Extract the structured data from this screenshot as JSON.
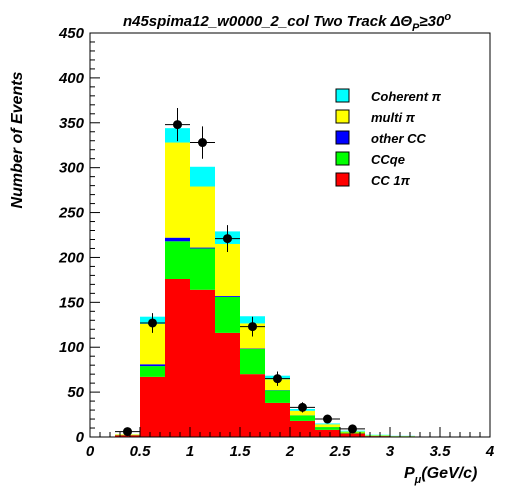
{
  "chart_data": {
    "type": "bar",
    "stacked": true,
    "title_main": "n45spima12_w0000_2_col Two Track ",
    "title_delta": "ΔΘ",
    "title_sub": "P",
    "title_cond": "≥30",
    "title_sup": "o",
    "ylabel": "Number of Events",
    "xlabel_main": "P",
    "xlabel_sub": "μ",
    "xlabel_unit": "(GeV/c)",
    "xlim": [
      0,
      4
    ],
    "ylim": [
      0,
      450
    ],
    "x_ticks": [
      0,
      0.5,
      1,
      1.5,
      2,
      2.5,
      3,
      3.5,
      4
    ],
    "x_tick_labels": [
      "0",
      "0.5",
      "1",
      "1.5",
      "2",
      "2.5",
      "3",
      "3.5",
      "4"
    ],
    "y_ticks": [
      0,
      50,
      100,
      150,
      200,
      250,
      300,
      350,
      400,
      450
    ],
    "y_tick_labels": [
      "0",
      "50",
      "100",
      "150",
      "200",
      "250",
      "300",
      "350",
      "400",
      "450"
    ],
    "bin_edges": [
      0.25,
      0.5,
      0.75,
      1.0,
      1.25,
      1.5,
      1.75,
      2.0,
      2.25,
      2.5,
      2.75,
      3.0,
      3.25,
      3.5
    ],
    "series": [
      {
        "name": "CC 1π",
        "color": "#ff0000",
        "values": [
          2,
          67,
          176,
          164,
          116,
          70,
          38,
          18,
          8,
          4,
          1,
          0.5,
          0.2
        ]
      },
      {
        "name": "CCqe",
        "color": "#00ff00",
        "values": [
          0.5,
          12,
          42,
          46,
          40,
          28,
          14,
          6,
          3,
          1,
          0.5,
          0.2,
          0
        ]
      },
      {
        "name": "other CC",
        "color": "#0000ff",
        "values": [
          0,
          2,
          4,
          1,
          1,
          0.5,
          0.3,
          0.2,
          0.1,
          0,
          0,
          0,
          0
        ]
      },
      {
        "name": "multi π",
        "color": "#ffff00",
        "values": [
          0.5,
          45,
          106,
          68,
          58,
          28,
          12,
          5,
          3,
          1,
          0.5,
          0.3,
          0.1
        ]
      },
      {
        "name": "Coherent π",
        "color": "#00ffff",
        "values": [
          0,
          8,
          16,
          22,
          14,
          8,
          4,
          2,
          1,
          1,
          0.5,
          0.3,
          0.2
        ]
      }
    ],
    "legend": {
      "placement": "top-right",
      "order": [
        "Coherent π",
        "multi π",
        "other CC",
        "CCqe",
        "CC 1π"
      ]
    },
    "data_points": {
      "x": [
        0.375,
        0.625,
        0.875,
        1.125,
        1.375,
        1.625,
        1.875,
        2.125,
        2.375,
        2.625
      ],
      "y": [
        6,
        127,
        348,
        328,
        221,
        123,
        65,
        33,
        20,
        9
      ],
      "yerr": [
        2.5,
        11,
        18.5,
        18,
        15,
        11,
        8,
        5.7,
        4.5,
        3
      ]
    }
  }
}
